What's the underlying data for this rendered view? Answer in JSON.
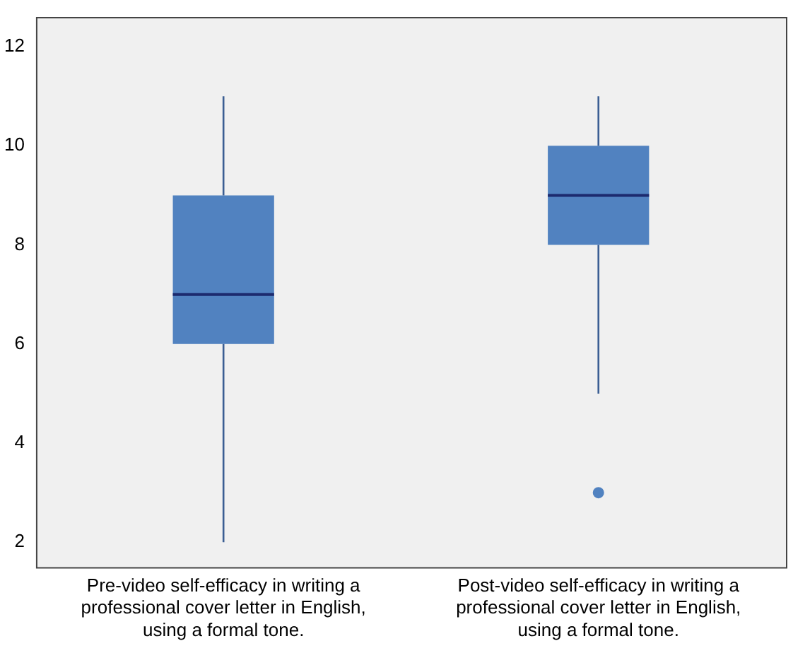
{
  "chart_data": {
    "type": "box",
    "categories": [
      "Pre-video self-efficacy in writing a professional cover letter in English, using a formal tone.",
      "Post-video self-efficacy in writing a professional cover letter in English, using a formal tone."
    ],
    "boxes": [
      {
        "low": 2,
        "q1": 6,
        "median": 7,
        "q3": 9,
        "high": 11
      },
      {
        "low": 5,
        "q1": 8,
        "median": 9,
        "q3": 10,
        "high": 11,
        "outliers": [
          3
        ]
      }
    ],
    "color": "#5182c0",
    "ylim": [
      1.5,
      12.6
    ],
    "yticks": [
      2,
      4,
      6,
      8,
      10,
      12
    ]
  }
}
